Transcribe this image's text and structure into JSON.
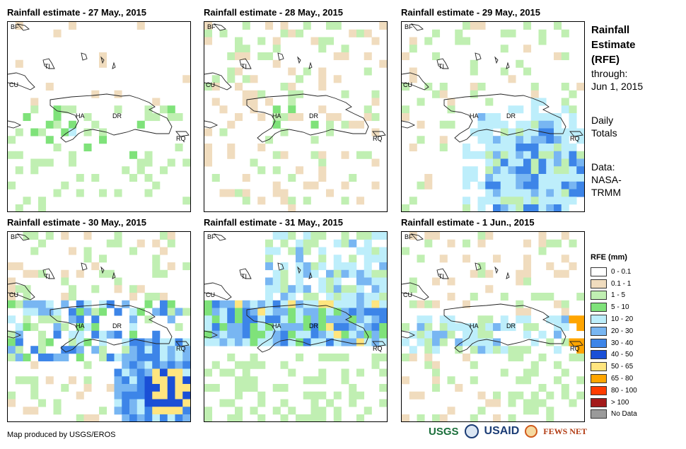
{
  "panels": [
    {
      "title": "Rainfall estimate - 27 May., 2015",
      "seed": 27,
      "profile": "light"
    },
    {
      "title": "Rainfall estimate - 28 May., 2015",
      "seed": 28,
      "profile": "sparse"
    },
    {
      "title": "Rainfall estimate - 29 May., 2015",
      "seed": 29,
      "profile": "southeast"
    },
    {
      "title": "Rainfall estimate - 30 May., 2015",
      "seed": 30,
      "profile": "heavy"
    },
    {
      "title": "Rainfall estimate - 31 May., 2015",
      "seed": 31,
      "profile": "north"
    },
    {
      "title": "Rainfall estimate - 1 Jun., 2015",
      "seed": 32,
      "profile": "east"
    }
  ],
  "map_labels": {
    "bf": "BF",
    "cu": "CU",
    "ti": "TI",
    "ha": "HA",
    "dr": "DR",
    "rq": "RQ"
  },
  "side": {
    "title_line1": "Rainfall",
    "title_line2": "Estimate",
    "title_line3": "(RFE)",
    "through": "through:",
    "date": "Jun 1, 2015",
    "daily1": "Daily",
    "daily2": "Totals",
    "data1": "Data:",
    "data2": "NASA-",
    "data3": "TRMM"
  },
  "legend": {
    "title": "RFE (mm)",
    "items": [
      {
        "label": "0 - 0.1",
        "color": "#ffffff"
      },
      {
        "label": "0.1 - 1",
        "color": "#f0dcbe"
      },
      {
        "label": "1 - 5",
        "color": "#c0efb2"
      },
      {
        "label": "5 - 10",
        "color": "#7fe27a"
      },
      {
        "label": "10 - 20",
        "color": "#bdeefb"
      },
      {
        "label": "20 - 30",
        "color": "#78b6f2"
      },
      {
        "label": "30 - 40",
        "color": "#3d85e8"
      },
      {
        "label": "40 - 50",
        "color": "#1a4fd6"
      },
      {
        "label": "50 - 65",
        "color": "#ffe57f"
      },
      {
        "label": "65 - 80",
        "color": "#ffa500"
      },
      {
        "label": "80 - 100",
        "color": "#ff3c00"
      },
      {
        "label": "> 100",
        "color": "#a31a1a"
      },
      {
        "label": "No Data",
        "color": "#9a9a9a"
      }
    ]
  },
  "credit": "Map produced by USGS/EROS",
  "logos": {
    "usgs": "USGS",
    "usaid": "USAID",
    "fews": "FEWS NET"
  }
}
